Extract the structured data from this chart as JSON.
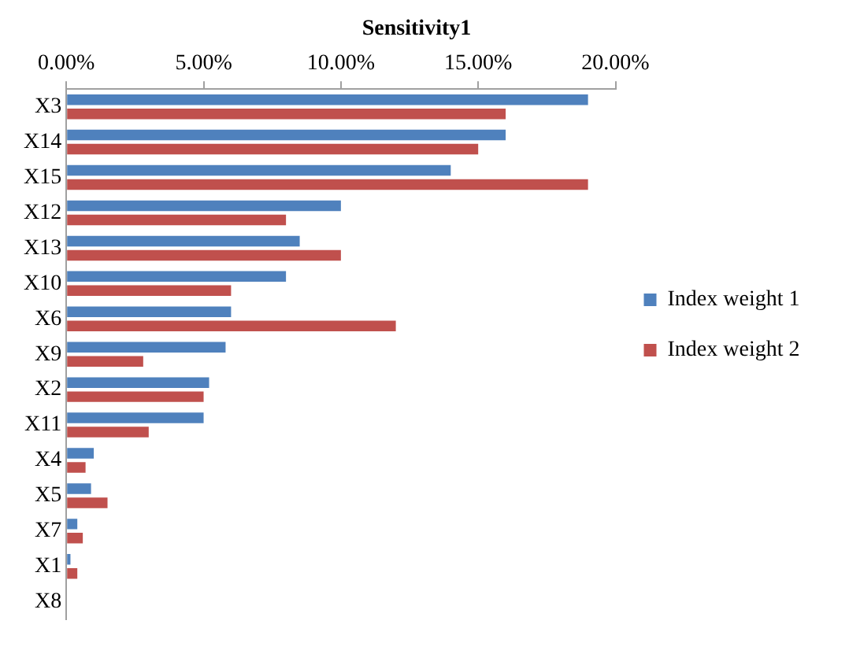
{
  "chart_data": {
    "type": "bar",
    "orientation": "horizontal",
    "title": "Sensitivity1",
    "categories": [
      "X3",
      "X14",
      "X15",
      "X12",
      "X13",
      "X10",
      "X6",
      "X9",
      "X2",
      "X11",
      "X4",
      "X5",
      "X7",
      "X1",
      "X8"
    ],
    "series": [
      {
        "name": "Index weight 1",
        "color": "#4f81bd",
        "values": [
          19.0,
          16.0,
          14.0,
          10.0,
          8.5,
          8.0,
          6.0,
          5.8,
          5.2,
          5.0,
          1.0,
          0.9,
          0.4,
          0.15,
          0
        ]
      },
      {
        "name": "Index weight 2",
        "color": "#c0504d",
        "values": [
          16.0,
          15.0,
          19.0,
          8.0,
          10.0,
          6.0,
          12.0,
          2.8,
          5.0,
          3.0,
          0.7,
          1.5,
          0.6,
          0.4,
          0
        ]
      }
    ],
    "xlim": [
      0,
      20
    ],
    "xticks": [
      {
        "value": 0,
        "label": "0.00%"
      },
      {
        "value": 5,
        "label": "5.00%"
      },
      {
        "value": 10,
        "label": "10.00%"
      },
      {
        "value": 15,
        "label": "15.00%"
      },
      {
        "value": 20,
        "label": "20.00%"
      }
    ],
    "grid": false,
    "legend": "right"
  }
}
